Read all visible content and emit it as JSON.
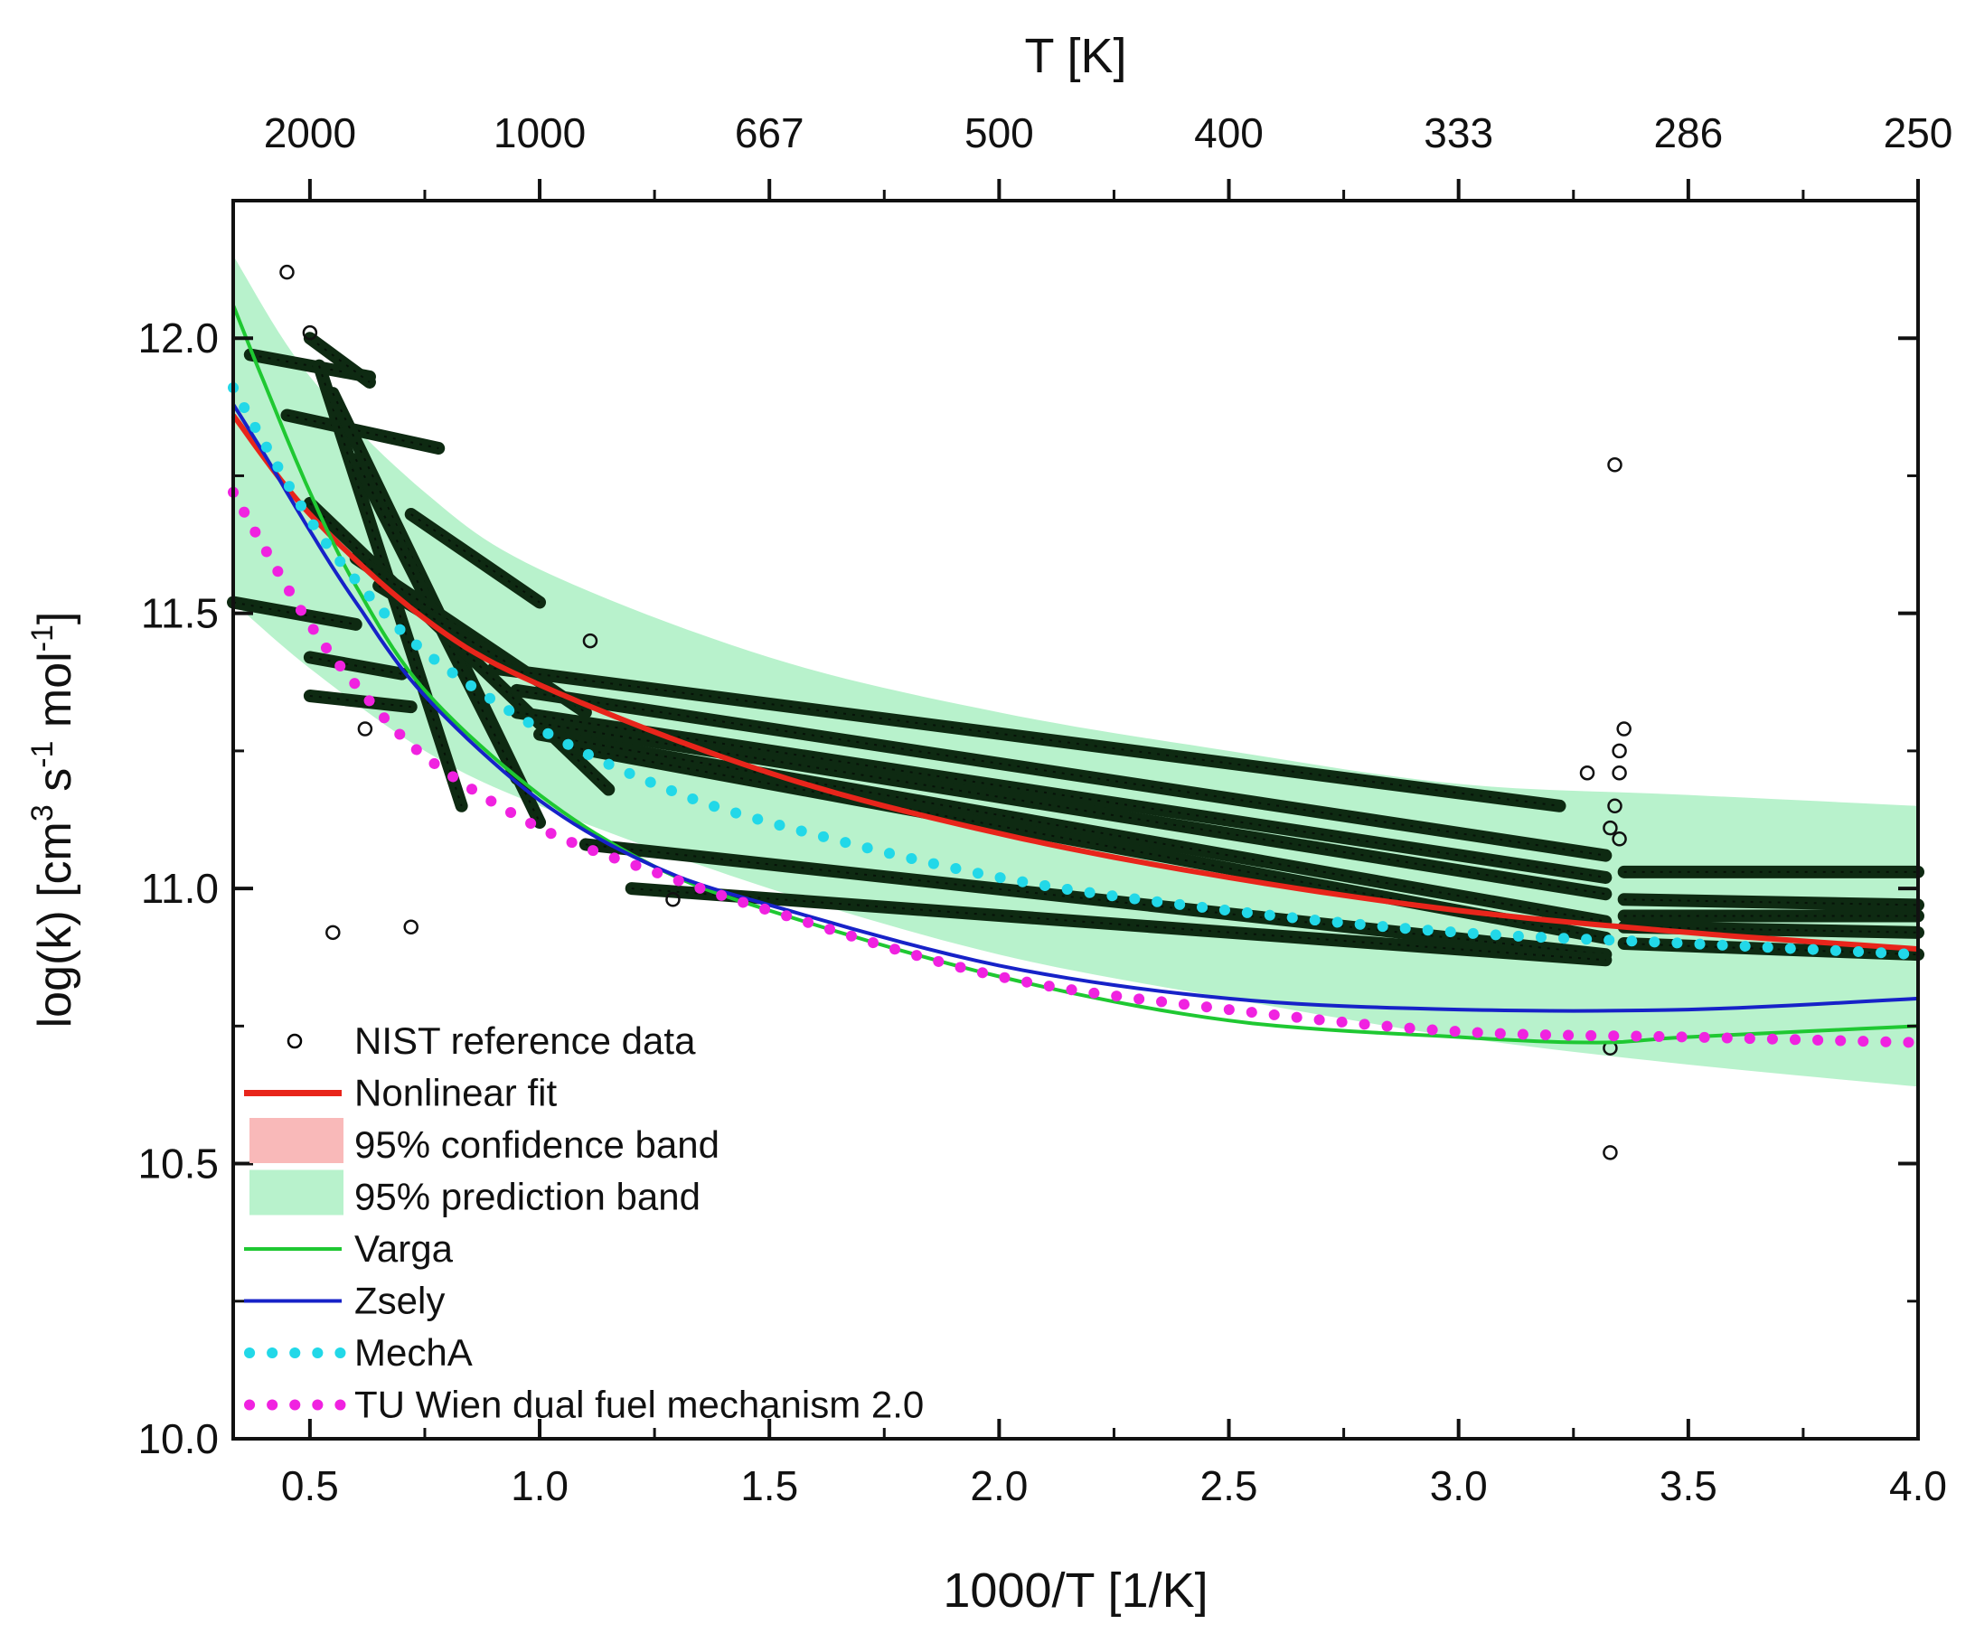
{
  "chart_data": {
    "type": "scatter",
    "xlabel": "1000/T [1/K]",
    "ylabel_parts": [
      "log(k) [cm",
      "3",
      " s",
      "-1",
      " mol",
      "-1",
      "]"
    ],
    "top_axis_label": "T [K]",
    "xlim": [
      0.333,
      4.0
    ],
    "ylim": [
      10.0,
      12.25
    ],
    "x_ticks": [
      "0.5",
      "1.0",
      "1.5",
      "2.0",
      "2.5",
      "3.0",
      "3.5",
      "4.0"
    ],
    "x_tick_values": [
      0.5,
      1.0,
      1.5,
      2.0,
      2.5,
      3.0,
      3.5,
      4.0
    ],
    "y_ticks": [
      "10.0",
      "10.5",
      "11.0",
      "11.5",
      "12.0"
    ],
    "y_tick_values": [
      10.0,
      10.5,
      11.0,
      11.5,
      12.0
    ],
    "top_ticks": [
      "2000",
      "1000",
      "667",
      "500",
      "400",
      "333",
      "286",
      "250"
    ],
    "top_tick_values": [
      0.5,
      1.0,
      1.5,
      2.0,
      2.5,
      3.0,
      3.5,
      4.0
    ],
    "legend": [
      {
        "label": "NIST reference data",
        "kind": "circle",
        "color": "#000000"
      },
      {
        "label": "Nonlinear fit",
        "kind": "line",
        "color": "#e8251b"
      },
      {
        "label": "95% confidence band",
        "kind": "fill",
        "color": "#f9b9b9"
      },
      {
        "label": "95% prediction band",
        "kind": "fill",
        "color": "#b8f2cc"
      },
      {
        "label": "Varga",
        "kind": "line",
        "color": "#1fc832"
      },
      {
        "label": "Zsely",
        "kind": "line",
        "color": "#1722c8"
      },
      {
        "label": "MechA",
        "kind": "dots",
        "color": "#22d8e8"
      },
      {
        "label": "TU Wien dual fuel mechanism 2.0",
        "kind": "dots",
        "color": "#f022e0"
      }
    ],
    "series": [
      {
        "name": "Nonlinear fit",
        "color": "#e8251b",
        "x": [
          0.333,
          0.5,
          0.75,
          1.0,
          1.5,
          2.0,
          2.5,
          3.0,
          3.5,
          4.0
        ],
        "y": [
          11.86,
          11.68,
          11.49,
          11.37,
          11.21,
          11.1,
          11.02,
          10.96,
          10.92,
          10.89
        ]
      },
      {
        "name": "Varga",
        "color": "#1fc832",
        "x": [
          0.333,
          0.4,
          0.5,
          0.6,
          0.75,
          1.0,
          1.25,
          1.5,
          2.0,
          2.5,
          3.0,
          3.3,
          3.5,
          4.0
        ],
        "y": [
          12.06,
          11.92,
          11.72,
          11.55,
          11.36,
          11.17,
          11.04,
          10.96,
          10.84,
          10.76,
          10.73,
          10.72,
          10.73,
          10.75
        ]
      },
      {
        "name": "Zsely",
        "color": "#1722c8",
        "x": [
          0.333,
          0.4,
          0.5,
          0.6,
          0.75,
          1.0,
          1.25,
          1.5,
          2.0,
          2.5,
          3.0,
          3.5,
          4.0
        ],
        "y": [
          11.88,
          11.79,
          11.65,
          11.52,
          11.35,
          11.16,
          11.04,
          10.97,
          10.86,
          10.8,
          10.78,
          10.78,
          10.8
        ]
      },
      {
        "name": "MechA",
        "color": "#22d8e8",
        "x": [
          0.333,
          0.4,
          0.5,
          0.6,
          0.75,
          1.0,
          1.25,
          1.5,
          2.0,
          2.5,
          3.0,
          3.5,
          4.0
        ],
        "y": [
          11.91,
          11.81,
          11.67,
          11.56,
          11.43,
          11.29,
          11.19,
          11.12,
          11.02,
          10.96,
          10.92,
          10.9,
          10.88
        ]
      },
      {
        "name": "TU Wien dual fuel mechanism 2.0",
        "color": "#f022e0",
        "x": [
          0.333,
          0.4,
          0.5,
          0.6,
          0.75,
          1.0,
          1.25,
          1.5,
          2.0,
          2.5,
          3.0,
          3.5,
          4.0
        ],
        "y": [
          11.72,
          11.62,
          11.48,
          11.37,
          11.24,
          11.11,
          11.03,
          10.96,
          10.84,
          10.78,
          10.74,
          10.73,
          10.72
        ]
      }
    ],
    "prediction_band": {
      "color": "#b8f2cc",
      "x": [
        0.333,
        0.5,
        0.75,
        1.0,
        1.5,
        2.0,
        2.5,
        3.0,
        3.5,
        4.0
      ],
      "upper": [
        12.15,
        11.93,
        11.72,
        11.58,
        11.42,
        11.32,
        11.25,
        11.19,
        11.17,
        11.15
      ],
      "lower": [
        11.52,
        11.4,
        11.25,
        11.15,
        11.0,
        10.88,
        10.8,
        10.73,
        10.68,
        10.64
      ]
    },
    "nist_segments": [
      {
        "x1": 0.37,
        "y1": 11.97,
        "x2": 0.63,
        "y2": 11.93
      },
      {
        "x1": 0.45,
        "y1": 11.86,
        "x2": 0.78,
        "y2": 11.8
      },
      {
        "x1": 0.5,
        "y1": 12.0,
        "x2": 0.63,
        "y2": 11.92
      },
      {
        "x1": 0.52,
        "y1": 11.95,
        "x2": 0.83,
        "y2": 11.15
      },
      {
        "x1": 0.55,
        "y1": 11.9,
        "x2": 1.0,
        "y2": 11.12
      },
      {
        "x1": 0.6,
        "y1": 11.78,
        "x2": 0.95,
        "y2": 11.2
      },
      {
        "x1": 0.5,
        "y1": 11.7,
        "x2": 1.15,
        "y2": 11.18
      },
      {
        "x1": 0.6,
        "y1": 11.6,
        "x2": 1.1,
        "y2": 11.32
      },
      {
        "x1": 0.65,
        "y1": 11.55,
        "x2": 0.95,
        "y2": 11.4
      },
      {
        "x1": 0.72,
        "y1": 11.68,
        "x2": 1.0,
        "y2": 11.52
      },
      {
        "x1": 0.333,
        "y1": 11.52,
        "x2": 0.6,
        "y2": 11.48
      },
      {
        "x1": 0.5,
        "y1": 11.42,
        "x2": 0.7,
        "y2": 11.39
      },
      {
        "x1": 0.5,
        "y1": 11.35,
        "x2": 0.72,
        "y2": 11.33
      },
      {
        "x1": 0.9,
        "y1": 11.4,
        "x2": 3.22,
        "y2": 11.15
      },
      {
        "x1": 0.95,
        "y1": 11.36,
        "x2": 3.32,
        "y2": 11.06
      },
      {
        "x1": 0.95,
        "y1": 11.32,
        "x2": 3.32,
        "y2": 11.02
      },
      {
        "x1": 1.0,
        "y1": 11.3,
        "x2": 3.32,
        "y2": 10.99
      },
      {
        "x1": 1.0,
        "y1": 11.28,
        "x2": 3.32,
        "y2": 10.94
      },
      {
        "x1": 1.05,
        "y1": 11.26,
        "x2": 3.32,
        "y2": 10.91
      },
      {
        "x1": 1.1,
        "y1": 11.08,
        "x2": 3.32,
        "y2": 10.88
      },
      {
        "x1": 1.2,
        "y1": 11.0,
        "x2": 3.32,
        "y2": 10.87
      },
      {
        "x1": 3.36,
        "y1": 11.03,
        "x2": 4.0,
        "y2": 11.03
      },
      {
        "x1": 3.36,
        "y1": 10.98,
        "x2": 4.0,
        "y2": 10.97
      },
      {
        "x1": 3.36,
        "y1": 10.95,
        "x2": 4.0,
        "y2": 10.95
      },
      {
        "x1": 3.36,
        "y1": 10.93,
        "x2": 4.0,
        "y2": 10.92
      },
      {
        "x1": 3.36,
        "y1": 10.9,
        "x2": 4.0,
        "y2": 10.88
      }
    ],
    "nist_points": [
      {
        "x": 0.45,
        "y": 12.12
      },
      {
        "x": 0.5,
        "y": 12.01
      },
      {
        "x": 0.55,
        "y": 10.92
      },
      {
        "x": 0.62,
        "y": 11.29
      },
      {
        "x": 0.72,
        "y": 10.93
      },
      {
        "x": 1.11,
        "y": 11.45
      },
      {
        "x": 1.29,
        "y": 10.98
      },
      {
        "x": 3.28,
        "y": 11.21
      },
      {
        "x": 3.34,
        "y": 11.77
      },
      {
        "x": 3.35,
        "y": 11.25
      },
      {
        "x": 3.35,
        "y": 11.21
      },
      {
        "x": 3.36,
        "y": 11.29
      },
      {
        "x": 3.34,
        "y": 11.15
      },
      {
        "x": 3.33,
        "y": 11.11
      },
      {
        "x": 3.35,
        "y": 11.09
      },
      {
        "x": 3.33,
        "y": 10.71
      },
      {
        "x": 3.33,
        "y": 10.52
      }
    ]
  }
}
